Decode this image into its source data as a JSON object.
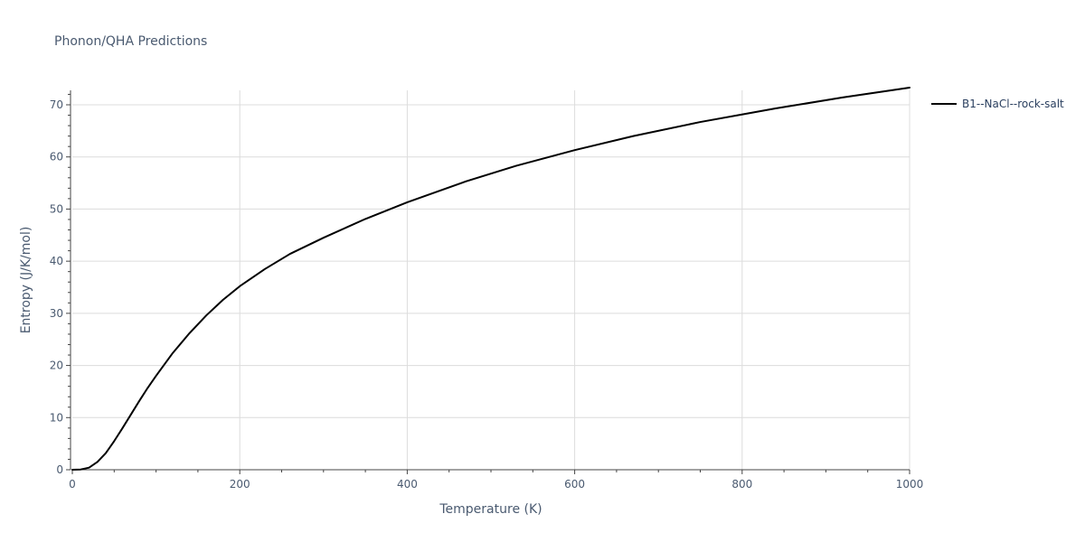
{
  "chart_data": {
    "type": "line",
    "title": "Phonon/QHA Predictions",
    "xlabel": "Temperature (K)",
    "ylabel": "Entropy (J/K/mol)",
    "xlim": [
      0,
      1000
    ],
    "ylim": [
      0,
      73
    ],
    "xticks": [
      0,
      200,
      400,
      600,
      800,
      1000
    ],
    "yticks": [
      0,
      10,
      20,
      30,
      40,
      50,
      60,
      70
    ],
    "grid": true,
    "legend_position": "top-right",
    "series": [
      {
        "name": "B1--NaCl--rock-salt",
        "color": "#000000",
        "x": [
          0,
          10,
          20,
          30,
          40,
          50,
          60,
          70,
          80,
          90,
          100,
          120,
          140,
          160,
          180,
          200,
          230,
          260,
          300,
          350,
          400,
          470,
          530,
          600,
          670,
          750,
          840,
          920,
          1000
        ],
        "y": [
          0,
          0.05,
          0.4,
          1.5,
          3.2,
          5.5,
          8.0,
          10.6,
          13.2,
          15.7,
          18.0,
          22.4,
          26.2,
          29.6,
          32.6,
          35.2,
          38.5,
          41.4,
          44.5,
          48.1,
          51.3,
          55.3,
          58.3,
          61.3,
          64.0,
          66.7,
          69.3,
          71.4,
          73.3
        ]
      }
    ]
  }
}
